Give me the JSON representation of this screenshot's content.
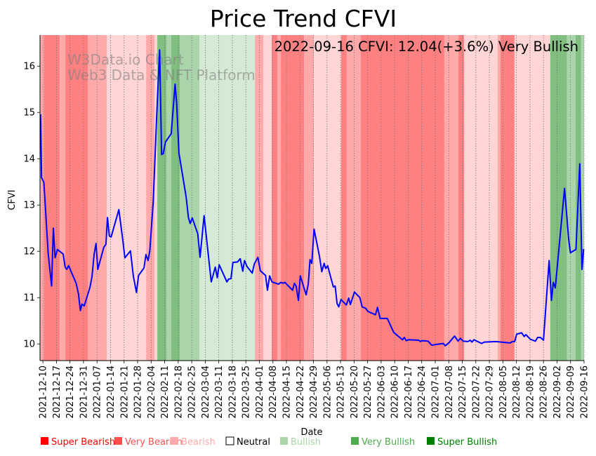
{
  "chart_data": {
    "type": "line",
    "title": "Price Trend CFVI",
    "xlabel": "Date",
    "ylabel": "CFVI",
    "annotation": "2022-09-16 CFVI: 12.04(+3.6%) Very Bullish",
    "watermark": [
      "W3Data.io Chart",
      "Web3 Data & NFT Platform"
    ],
    "x_unit": "days since 2021-12-10",
    "xlim": [
      -1.5,
      280
    ],
    "ylim": [
      9.64,
      16.67
    ],
    "yticks": [
      10,
      11,
      12,
      13,
      14,
      15,
      16
    ],
    "xtick_days": 7,
    "xtick_labels": [
      "2021-12-10",
      "2021-12-17",
      "2021-12-24",
      "2021-12-31",
      "2022-01-07",
      "2022-01-14",
      "2022-01-21",
      "2022-01-28",
      "2022-02-04",
      "2022-02-11",
      "2022-02-18",
      "2022-02-25",
      "2022-03-04",
      "2022-03-11",
      "2022-03-18",
      "2022-03-25",
      "2022-04-01",
      "2022-04-08",
      "2022-04-15",
      "2022-04-22",
      "2022-04-29",
      "2022-05-06",
      "2022-05-13",
      "2022-05-20",
      "2022-05-27",
      "2022-06-03",
      "2022-06-10",
      "2022-06-17",
      "2022-06-24",
      "2022-07-01",
      "2022-07-08",
      "2022-07-15",
      "2022-07-22",
      "2022-07-29",
      "2022-08-05",
      "2022-08-12",
      "2022-08-19",
      "2022-08-26",
      "2022-09-02",
      "2022-09-09",
      "2022-09-16"
    ],
    "grid": "vertical dotted",
    "line_color": "#0000ff",
    "series": [
      {
        "name": "CFVI",
        "x": [
          -1.2,
          -0.7,
          0.5,
          2.7,
          4.5,
          5.4,
          6.3,
          7.5,
          10.5,
          11.5,
          12.3,
          13.3,
          17.2,
          18.4,
          19.4,
          20.2,
          21.4,
          24.4,
          25.4,
          26.5,
          27.5,
          28.4,
          31.5,
          32.6,
          33.4,
          34.4,
          35.3,
          39.3,
          41.4,
          42.4,
          45.3,
          46.8,
          48.4,
          49.5,
          52.3,
          53.3,
          54.4,
          55.3,
          57.1,
          58.9,
          60.4,
          61.4,
          62.3,
          63.4,
          66.4,
          68.4,
          69.2,
          70.4,
          74.1,
          75.3,
          76.2,
          77.3,
          80.1,
          81.3,
          83.4,
          87.1,
          89.2,
          90.2,
          91.2,
          95.2,
          96.1,
          97.3,
          98.3,
          100.7,
          102.1,
          103.4,
          104.3,
          105.6,
          108.3,
          109.4,
          111.2,
          112.5,
          115.2,
          116.2,
          117.3,
          118.5,
          121.9,
          123.1,
          124.3,
          125.2,
          129.2,
          130.1,
          131.0,
          132.2,
          133.2,
          136.2,
          137.3,
          138.2,
          139.1,
          140.3,
          143.1,
          144.3,
          145.5,
          146.3,
          147.3,
          150.3,
          151.2,
          152.2,
          153.1,
          154.2,
          157.0,
          158.2,
          159.1,
          161.2,
          164.0,
          165.2,
          167.0,
          168.2,
          172.1,
          173.1,
          174.5,
          178.2,
          181.5,
          186.0,
          187.0,
          188.0,
          189.1,
          194.5,
          195.3,
          196.1,
          199.3,
          201.2,
          203.6,
          207.2,
          208.2,
          210.2,
          213.0,
          214.8,
          216.0,
          217.5,
          219.9,
          221.1,
          222.0,
          223.0,
          227.0,
          228.4,
          234.5,
          241.7,
          242.9,
          244.1,
          245.1,
          247.7,
          249.0,
          249.9,
          252.2,
          254.8,
          256.0,
          257.4,
          259.0,
          261.9,
          263.1,
          264.1,
          265.1,
          269.9,
          272.0,
          272.9,
          275.8,
          277.8,
          278.9,
          279.8
        ],
        "y": [
          14.96,
          13.59,
          13.49,
          11.96,
          11.25,
          12.5,
          11.86,
          12.04,
          11.94,
          11.66,
          11.61,
          11.69,
          11.31,
          11.08,
          10.72,
          10.86,
          10.82,
          11.23,
          11.46,
          11.94,
          12.17,
          11.61,
          12.09,
          12.15,
          12.73,
          12.33,
          12.31,
          12.9,
          12.22,
          11.86,
          12.01,
          11.46,
          11.11,
          11.48,
          11.64,
          11.93,
          11.8,
          12.01,
          13.08,
          14.96,
          16.35,
          14.09,
          14.11,
          14.36,
          14.54,
          15.61,
          15.21,
          14.12,
          13.18,
          12.73,
          12.6,
          12.72,
          12.38,
          11.87,
          12.77,
          11.34,
          11.66,
          11.43,
          11.71,
          11.34,
          11.4,
          11.41,
          11.76,
          11.77,
          11.84,
          11.57,
          11.8,
          11.67,
          11.53,
          11.73,
          11.87,
          11.58,
          11.48,
          11.16,
          11.47,
          11.34,
          11.29,
          11.33,
          11.31,
          11.33,
          11.16,
          11.31,
          11.25,
          10.94,
          11.47,
          11.06,
          11.29,
          11.82,
          11.74,
          12.48,
          11.89,
          11.56,
          11.74,
          11.63,
          11.69,
          11.23,
          11.25,
          10.87,
          10.8,
          10.96,
          10.84,
          10.99,
          10.85,
          11.12,
          11.0,
          10.8,
          10.77,
          10.7,
          10.63,
          10.79,
          10.55,
          10.55,
          10.25,
          10.09,
          10.14,
          10.07,
          10.09,
          10.08,
          10.05,
          10.07,
          10.06,
          9.97,
          9.99,
          10.01,
          9.96,
          10.03,
          10.17,
          10.06,
          10.12,
          10.06,
          10.05,
          10.08,
          10.04,
          10.09,
          10.01,
          10.04,
          10.05,
          10.02,
          10.05,
          10.05,
          10.21,
          10.24,
          10.16,
          10.2,
          10.1,
          10.06,
          10.14,
          10.14,
          10.08,
          11.8,
          10.94,
          11.33,
          11.21,
          13.36,
          12.27,
          11.97,
          12.04,
          13.89,
          11.61,
          12.05
        ]
      }
    ],
    "band_colors": {
      "Super Bearish": "#ff8080",
      "Very Bearish": "#ffaaaa",
      "Bearish": "#ffd5d5",
      "Neutral": "#ffffff",
      "Bullish": "#d5ead5",
      "Very Bullish": "#aad5aa",
      "Super Bullish": "#80bf80"
    },
    "bands": [
      {
        "start": -1.5,
        "end": 0.4,
        "state": "Very Bearish"
      },
      {
        "start": 0.4,
        "end": 8.7,
        "state": "Super Bearish"
      },
      {
        "start": 8.7,
        "end": 11.6,
        "state": "Very Bearish"
      },
      {
        "start": 11.6,
        "end": 23.2,
        "state": "Super Bearish"
      },
      {
        "start": 23.2,
        "end": 33.0,
        "state": "Very Bearish"
      },
      {
        "start": 33.0,
        "end": 53.4,
        "state": "Bearish"
      },
      {
        "start": 53.4,
        "end": 57.7,
        "state": "Very Bearish"
      },
      {
        "start": 57.7,
        "end": 59.2,
        "state": "Bearish"
      },
      {
        "start": 59.2,
        "end": 63.9,
        "state": "Super Bullish"
      },
      {
        "start": 63.9,
        "end": 66.4,
        "state": "Very Bullish"
      },
      {
        "start": 66.4,
        "end": 70.8,
        "state": "Super Bullish"
      },
      {
        "start": 70.8,
        "end": 81.0,
        "state": "Very Bullish"
      },
      {
        "start": 81.0,
        "end": 109.7,
        "state": "Bullish"
      },
      {
        "start": 109.7,
        "end": 114.0,
        "state": "Very Bearish"
      },
      {
        "start": 114.0,
        "end": 118.4,
        "state": "Bearish"
      },
      {
        "start": 118.4,
        "end": 121.3,
        "state": "Super Bearish"
      },
      {
        "start": 121.3,
        "end": 123.1,
        "state": "Very Bearish"
      },
      {
        "start": 123.1,
        "end": 135.1,
        "state": "Super Bearish"
      },
      {
        "start": 135.1,
        "end": 140.2,
        "state": "Very Bearish"
      },
      {
        "start": 140.2,
        "end": 154.3,
        "state": "Bearish"
      },
      {
        "start": 154.3,
        "end": 157.2,
        "state": "Super Bearish"
      },
      {
        "start": 157.2,
        "end": 164.5,
        "state": "Very Bearish"
      },
      {
        "start": 164.5,
        "end": 207.7,
        "state": "Super Bearish"
      },
      {
        "start": 207.7,
        "end": 215.0,
        "state": "Very Bearish"
      },
      {
        "start": 215.0,
        "end": 217.9,
        "state": "Super Bearish"
      },
      {
        "start": 217.9,
        "end": 235.3,
        "state": "Bearish"
      },
      {
        "start": 235.3,
        "end": 236.7,
        "state": "Very Bearish"
      },
      {
        "start": 236.7,
        "end": 244.0,
        "state": "Super Bearish"
      },
      {
        "start": 244.0,
        "end": 262.5,
        "state": "Bearish"
      },
      {
        "start": 262.5,
        "end": 271.2,
        "state": "Super Bullish"
      },
      {
        "start": 271.2,
        "end": 275.6,
        "state": "Very Bullish"
      },
      {
        "start": 275.6,
        "end": 278.5,
        "state": "Super Bullish"
      },
      {
        "start": 278.5,
        "end": 280,
        "state": "Very Bullish"
      }
    ],
    "legend_position": "bottom",
    "legend": [
      {
        "label": "Super Bearish",
        "color": "#ff0000"
      },
      {
        "label": "Very Bearish",
        "color": "#ff5050"
      },
      {
        "label": "Bearish",
        "color": "#ffaaaa"
      },
      {
        "label": "Neutral",
        "color": "#ffffff"
      },
      {
        "label": "Bullish",
        "color": "#aad5aa"
      },
      {
        "label": "Very Bullish",
        "color": "#4faa4f"
      },
      {
        "label": "Super Bullish",
        "color": "#008000"
      }
    ]
  }
}
